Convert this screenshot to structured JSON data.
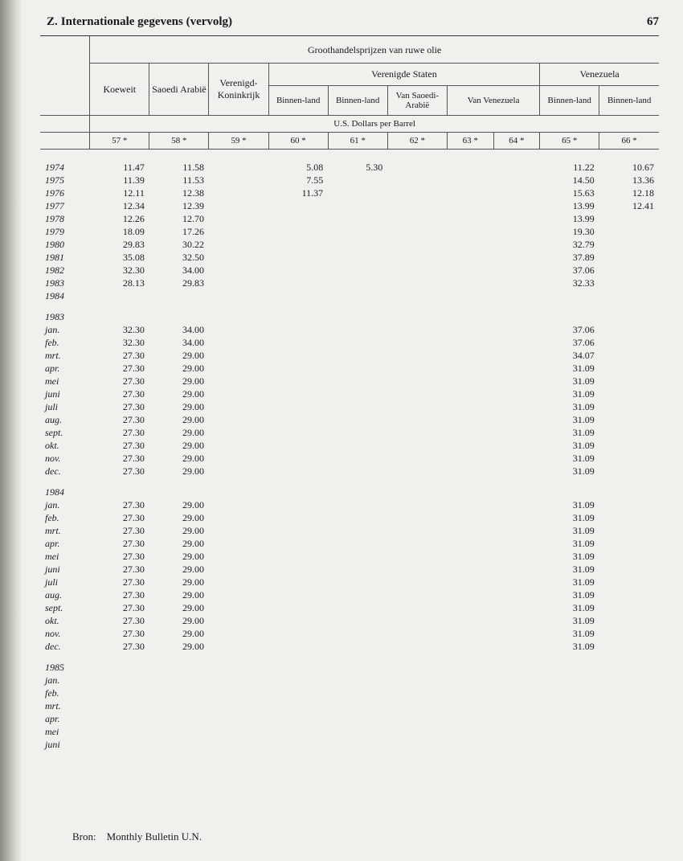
{
  "header": {
    "section_label": "Z.",
    "section_title": "Internationale gegevens (vervolg)",
    "page_number": "67"
  },
  "table": {
    "main_title": "Groothandelsprijzen van ruwe olie",
    "unit_label": "U.S. Dollars per Barrel",
    "columns": {
      "koeweit": "Koeweit",
      "saoedi": "Saoedi Arabië",
      "vk": "Verenigd-Koninkrijk",
      "vs_group": "Verenigde Staten",
      "vs_binnen1": "Binnen-land",
      "vs_binnen2": "Binnen-land",
      "vs_van_saoedi": "Van Saoedi-Arabië",
      "vs_van_ven": "Van Venezuela",
      "ven_group": "Venezuela",
      "ven_binnen1": "Binnen-land",
      "ven_binnen2": "Binnen-land"
    },
    "colnums": [
      "57 *",
      "58 *",
      "59 *",
      "60 *",
      "61 *",
      "62 *",
      "63 *",
      "64 *",
      "65 *",
      "66 *"
    ],
    "rows_years": [
      {
        "label": "1974",
        "c": [
          "11.47",
          "11.58",
          "",
          "5.08",
          "5.30",
          "",
          "",
          "",
          "11.22",
          "10.67"
        ]
      },
      {
        "label": "1975",
        "c": [
          "11.39",
          "11.53",
          "",
          "7.55",
          "",
          "",
          "",
          "",
          "14.50",
          "13.36"
        ]
      },
      {
        "label": "1976",
        "c": [
          "12.11",
          "12.38",
          "",
          "11.37",
          "",
          "",
          "",
          "",
          "15.63",
          "12.18"
        ]
      },
      {
        "label": "1977",
        "c": [
          "12.34",
          "12.39",
          "",
          "",
          "",
          "",
          "",
          "",
          "13.99",
          "12.41"
        ]
      },
      {
        "label": "1978",
        "c": [
          "12.26",
          "12.70",
          "",
          "",
          "",
          "",
          "",
          "",
          "13.99",
          ""
        ]
      },
      {
        "label": "1979",
        "c": [
          "18.09",
          "17.26",
          "",
          "",
          "",
          "",
          "",
          "",
          "19.30",
          ""
        ]
      },
      {
        "label": "1980",
        "c": [
          "29.83",
          "30.22",
          "",
          "",
          "",
          "",
          "",
          "",
          "32.79",
          ""
        ]
      },
      {
        "label": "1981",
        "c": [
          "35.08",
          "32.50",
          "",
          "",
          "",
          "",
          "",
          "",
          "37.89",
          ""
        ]
      },
      {
        "label": "1982",
        "c": [
          "32.30",
          "34.00",
          "",
          "",
          "",
          "",
          "",
          "",
          "37.06",
          ""
        ]
      },
      {
        "label": "1983",
        "c": [
          "28.13",
          "29.83",
          "",
          "",
          "",
          "",
          "",
          "",
          "32.33",
          ""
        ]
      },
      {
        "label": "1984",
        "c": [
          "",
          "",
          "",
          "",
          "",
          "",
          "",
          "",
          "",
          ""
        ]
      }
    ],
    "section_1983": "1983",
    "rows_1983": [
      {
        "label": "jan.",
        "c": [
          "32.30",
          "34.00",
          "",
          "",
          "",
          "",
          "",
          "",
          "37.06",
          ""
        ]
      },
      {
        "label": "feb.",
        "c": [
          "32.30",
          "34.00",
          "",
          "",
          "",
          "",
          "",
          "",
          "37.06",
          ""
        ]
      },
      {
        "label": "mrt.",
        "c": [
          "27.30",
          "29.00",
          "",
          "",
          "",
          "",
          "",
          "",
          "34.07",
          ""
        ]
      },
      {
        "label": "apr.",
        "c": [
          "27.30",
          "29.00",
          "",
          "",
          "",
          "",
          "",
          "",
          "31.09",
          ""
        ]
      },
      {
        "label": "mei",
        "c": [
          "27.30",
          "29.00",
          "",
          "",
          "",
          "",
          "",
          "",
          "31.09",
          ""
        ]
      },
      {
        "label": "juni",
        "c": [
          "27.30",
          "29.00",
          "",
          "",
          "",
          "",
          "",
          "",
          "31.09",
          ""
        ]
      },
      {
        "label": "juli",
        "c": [
          "27.30",
          "29.00",
          "",
          "",
          "",
          "",
          "",
          "",
          "31.09",
          ""
        ]
      },
      {
        "label": "aug.",
        "c": [
          "27.30",
          "29.00",
          "",
          "",
          "",
          "",
          "",
          "",
          "31.09",
          ""
        ]
      },
      {
        "label": "sept.",
        "c": [
          "27.30",
          "29.00",
          "",
          "",
          "",
          "",
          "",
          "",
          "31.09",
          ""
        ]
      },
      {
        "label": "okt.",
        "c": [
          "27.30",
          "29.00",
          "",
          "",
          "",
          "",
          "",
          "",
          "31.09",
          ""
        ]
      },
      {
        "label": "nov.",
        "c": [
          "27.30",
          "29.00",
          "",
          "",
          "",
          "",
          "",
          "",
          "31.09",
          ""
        ]
      },
      {
        "label": "dec.",
        "c": [
          "27.30",
          "29.00",
          "",
          "",
          "",
          "",
          "",
          "",
          "31.09",
          ""
        ]
      }
    ],
    "section_1984": "1984",
    "rows_1984": [
      {
        "label": "jan.",
        "c": [
          "27.30",
          "29.00",
          "",
          "",
          "",
          "",
          "",
          "",
          "31.09",
          ""
        ]
      },
      {
        "label": "feb.",
        "c": [
          "27.30",
          "29.00",
          "",
          "",
          "",
          "",
          "",
          "",
          "31.09",
          ""
        ]
      },
      {
        "label": "mrt.",
        "c": [
          "27.30",
          "29.00",
          "",
          "",
          "",
          "",
          "",
          "",
          "31.09",
          ""
        ]
      },
      {
        "label": "apr.",
        "c": [
          "27.30",
          "29.00",
          "",
          "",
          "",
          "",
          "",
          "",
          "31.09",
          ""
        ]
      },
      {
        "label": "mei",
        "c": [
          "27.30",
          "29.00",
          "",
          "",
          "",
          "",
          "",
          "",
          "31.09",
          ""
        ]
      },
      {
        "label": "juni",
        "c": [
          "27.30",
          "29.00",
          "",
          "",
          "",
          "",
          "",
          "",
          "31.09",
          ""
        ]
      },
      {
        "label": "juli",
        "c": [
          "27.30",
          "29.00",
          "",
          "",
          "",
          "",
          "",
          "",
          "31.09",
          ""
        ]
      },
      {
        "label": "aug.",
        "c": [
          "27.30",
          "29.00",
          "",
          "",
          "",
          "",
          "",
          "",
          "31.09",
          ""
        ]
      },
      {
        "label": "sept.",
        "c": [
          "27.30",
          "29.00",
          "",
          "",
          "",
          "",
          "",
          "",
          "31.09",
          ""
        ]
      },
      {
        "label": "okt.",
        "c": [
          "27.30",
          "29.00",
          "",
          "",
          "",
          "",
          "",
          "",
          "31.09",
          ""
        ]
      },
      {
        "label": "nov.",
        "c": [
          "27.30",
          "29.00",
          "",
          "",
          "",
          "",
          "",
          "",
          "31.09",
          ""
        ]
      },
      {
        "label": "dec.",
        "c": [
          "27.30",
          "29.00",
          "",
          "",
          "",
          "",
          "",
          "",
          "31.09",
          ""
        ]
      }
    ],
    "section_1985": "1985",
    "rows_1985": [
      {
        "label": "jan.",
        "c": [
          "",
          "",
          "",
          "",
          "",
          "",
          "",
          "",
          "",
          ""
        ]
      },
      {
        "label": "feb.",
        "c": [
          "",
          "",
          "",
          "",
          "",
          "",
          "",
          "",
          "",
          ""
        ]
      },
      {
        "label": "mrt.",
        "c": [
          "",
          "",
          "",
          "",
          "",
          "",
          "",
          "",
          "",
          ""
        ]
      },
      {
        "label": "apr.",
        "c": [
          "",
          "",
          "",
          "",
          "",
          "",
          "",
          "",
          "",
          ""
        ]
      },
      {
        "label": "mei",
        "c": [
          "",
          "",
          "",
          "",
          "",
          "",
          "",
          "",
          "",
          ""
        ]
      },
      {
        "label": "juni",
        "c": [
          "",
          "",
          "",
          "",
          "",
          "",
          "",
          "",
          "",
          ""
        ]
      }
    ]
  },
  "footer": {
    "bron_label": "Bron:",
    "bron_value": "Monthly Bulletin U.N."
  },
  "styling": {
    "page_bg": "#f0f0ed",
    "text_color": "#1a1a1a",
    "border_color": "#555",
    "font_family": "Times New Roman",
    "header_fontsize": 15,
    "body_fontsize": 12,
    "small_fontsize": 11
  }
}
